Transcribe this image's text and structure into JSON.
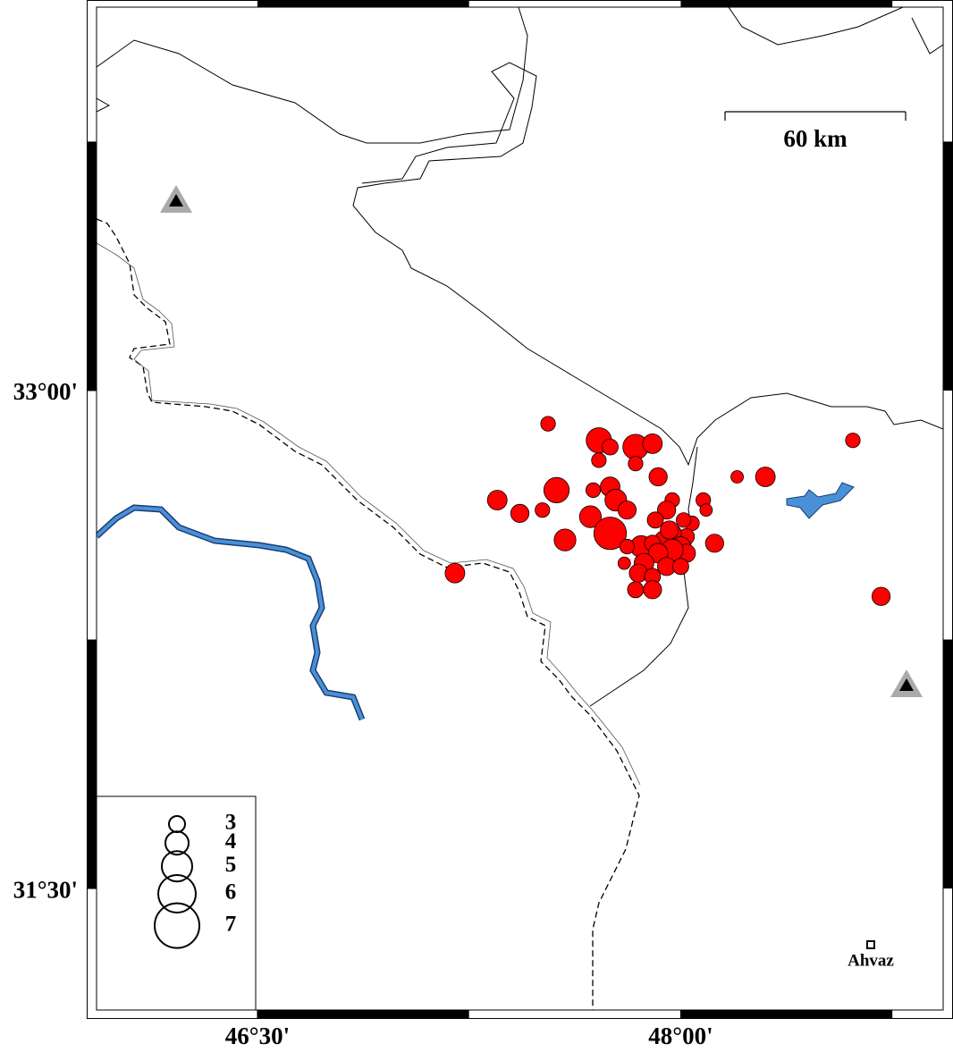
{
  "chart_data": {
    "type": "scatter",
    "xlim": [
      45.93,
      48.93
    ],
    "ylim": [
      31.134,
      34.155
    ],
    "xticks": [
      {
        "value": 46.5,
        "label": "46°30'"
      },
      {
        "value": 48,
        "label": "48°00'"
      }
    ],
    "yticks": [
      {
        "value": 31.5,
        "label": "31°30'"
      },
      {
        "value": 33,
        "label": "33°00'"
      }
    ],
    "color": "#ff0000",
    "x": [
      47.53,
      47.71,
      47.84,
      47.9,
      47.75,
      47.71,
      47.84,
      47.92,
      47.56,
      47.35,
      47.43,
      47.51,
      47.69,
      47.75,
      47.77,
      47.68,
      47.81,
      47.75,
      47.59,
      47.97,
      47.95,
      47.91,
      48.08,
      48.09,
      48.2,
      48.3,
      48.61,
      48.71,
      47.2,
      48.04,
      48.12,
      48.01,
      48.02,
      47.97,
      47.94,
      47.86,
      47.9,
      48.0,
      48.02,
      47.97,
      47.92,
      47.87,
      47.95,
      48.0,
      47.85,
      47.9,
      47.8,
      47.84,
      47.9,
      47.96,
      47.81
    ],
    "y": [
      32.9,
      32.85,
      32.83,
      32.84,
      32.83,
      32.79,
      32.78,
      32.74,
      32.7,
      32.67,
      32.63,
      32.64,
      32.7,
      32.71,
      32.67,
      32.62,
      32.64,
      32.57,
      32.55,
      32.67,
      32.64,
      32.61,
      32.67,
      32.64,
      32.74,
      32.74,
      32.85,
      32.38,
      32.45,
      32.6,
      32.54,
      32.61,
      32.56,
      32.57,
      32.55,
      32.53,
      32.54,
      32.53,
      32.51,
      32.52,
      32.51,
      32.48,
      32.47,
      32.47,
      32.45,
      32.44,
      32.48,
      32.4,
      32.4,
      32.58,
      32.53
    ],
    "sizes": [
      2.8,
      4.3,
      4.3,
      3.5,
      3.0,
      2.8,
      2.8,
      3.3,
      4.3,
      3.5,
      3.3,
      2.8,
      2.8,
      3.5,
      3.8,
      3.8,
      3.3,
      5.3,
      3.8,
      2.8,
      3.3,
      3.0,
      2.8,
      2.5,
      2.5,
      3.5,
      2.8,
      3.3,
      3.5,
      2.8,
      3.3,
      2.8,
      3.0,
      3.3,
      3.3,
      3.8,
      3.0,
      3.5,
      3.3,
      3.8,
      3.5,
      3.5,
      3.3,
      3.0,
      3.3,
      3.0,
      2.5,
      3.0,
      3.3,
      3.3,
      2.8
    ],
    "size_legend": [
      3,
      4,
      5,
      6,
      7
    ]
  },
  "scale_bar": "60 km",
  "city": "Ahvaz"
}
